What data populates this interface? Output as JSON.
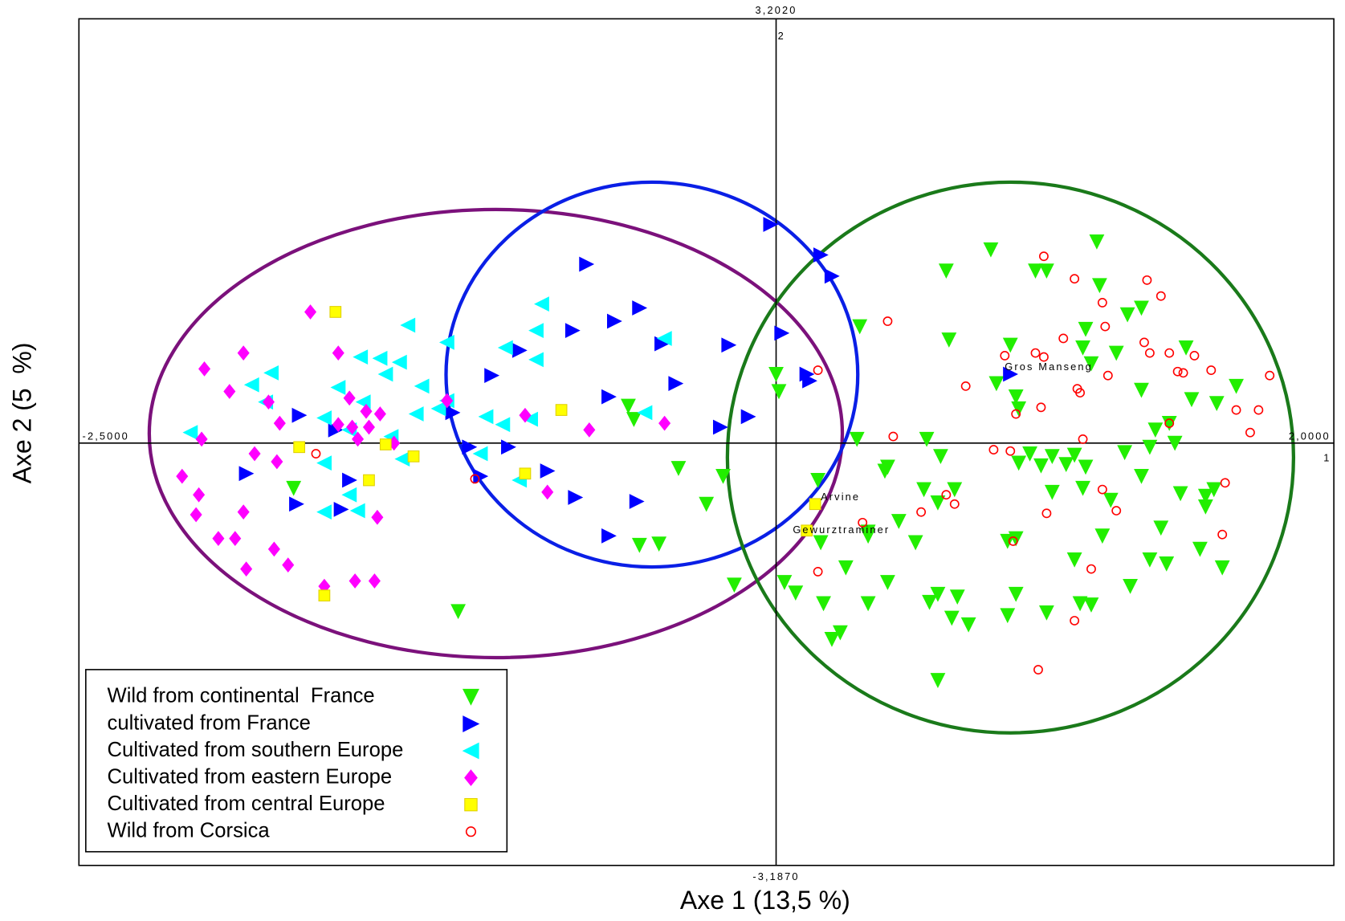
{
  "chart_data": {
    "type": "scatter",
    "x_label": "Axe 1 (13,5 %)",
    "y_label": "Axe 2 (5  %)",
    "x_axis_number": "1",
    "y_axis_number": "2",
    "xlim": [
      -2.5,
      2.0
    ],
    "ylim": [
      -3.187,
      3.202
    ],
    "xticks": [
      {
        "value": -2.5,
        "label": "-2,5000"
      },
      {
        "value": 2.0,
        "label": "2,0000"
      }
    ],
    "yticks": [
      {
        "value": -3.187,
        "label": "-3,1870"
      },
      {
        "value": 3.202,
        "label": "3,2020"
      }
    ],
    "legend": "lower left",
    "series": [
      {
        "name": "Wild from continental  France",
        "color": "#22ee00",
        "marker": "triangle-down",
        "x": [
          1.15,
          0.77,
          0.61,
          0.93,
          0.97,
          1.16,
          1.31,
          1.26,
          0.3,
          1.11,
          0.62,
          0.84,
          1.1,
          1.47,
          1.22,
          1.13,
          0.0,
          0.79,
          0.01,
          0.86,
          1.31,
          1.65,
          -0.53,
          0.87,
          1.49,
          1.58,
          -0.51,
          1.41,
          1.36,
          0.29,
          0.54,
          1.43,
          1.34,
          1.25,
          0.59,
          0.91,
          0.99,
          1.07,
          0.87,
          0.95,
          1.04,
          1.11,
          0.4,
          0.39,
          -0.35,
          -0.19,
          1.31,
          0.15,
          1.1,
          0.64,
          0.53,
          1.57,
          1.54,
          1.45,
          0.99,
          1.2,
          -0.25,
          0.58,
          -1.73,
          1.54,
          0.44,
          1.38,
          0.33,
          0.86,
          0.83,
          0.16,
          1.17,
          -0.49,
          -0.42,
          0.5,
          1.52,
          1.34,
          1.4,
          1.6,
          0.25,
          1.07,
          0.03,
          0.07,
          0.4,
          1.27,
          -0.15,
          0.58,
          0.86,
          0.65,
          0.17,
          0.33,
          0.55,
          -1.14,
          0.83,
          0.97,
          1.09,
          1.13,
          0.63,
          0.69,
          0.23,
          0.2,
          0.58,
          0.33
        ],
        "y": [
          1.52,
          1.46,
          1.3,
          1.3,
          1.3,
          1.19,
          1.02,
          0.97,
          0.88,
          0.86,
          0.78,
          0.74,
          0.72,
          0.72,
          0.68,
          0.6,
          0.52,
          0.45,
          0.39,
          0.35,
          0.4,
          0.43,
          0.28,
          0.26,
          0.33,
          0.3,
          0.18,
          0.15,
          0.1,
          0.03,
          0.03,
          0.0,
          -0.03,
          -0.07,
          -0.1,
          -0.08,
          -0.1,
          -0.09,
          -0.15,
          -0.17,
          -0.16,
          -0.18,
          -0.18,
          -0.21,
          -0.19,
          -0.25,
          -0.25,
          -0.28,
          -0.34,
          -0.35,
          -0.35,
          -0.35,
          -0.4,
          -0.38,
          -0.37,
          -0.43,
          -0.46,
          -0.45,
          -0.34,
          -0.48,
          -0.59,
          -0.64,
          -0.7,
          -0.72,
          -0.74,
          -0.75,
          -0.7,
          -0.77,
          -0.76,
          -0.75,
          -0.8,
          -0.88,
          -0.91,
          -0.94,
          -0.94,
          -0.88,
          -1.05,
          -1.13,
          -1.05,
          -1.08,
          -1.07,
          -1.14,
          -1.14,
          -1.16,
          -1.21,
          -1.21,
          -1.2,
          -1.27,
          -1.3,
          -1.28,
          -1.21,
          -1.22,
          -1.32,
          -1.37,
          -1.43,
          -1.48,
          -1.79,
          -0.67
        ]
      },
      {
        "name": "cultivated from France",
        "color": "#0000ff",
        "marker": "triangle-right",
        "x": [
          -0.02,
          0.16,
          0.2,
          -0.68,
          -0.49,
          -0.58,
          -0.73,
          -0.41,
          -0.17,
          0.02,
          -0.92,
          -1.02,
          -0.36,
          0.11,
          0.12,
          -0.6,
          -0.1,
          -0.2,
          -1.16,
          -1.71,
          -1.58,
          -1.1,
          -0.96,
          -1.06,
          -0.82,
          -1.9,
          -1.53,
          -0.72,
          -0.5,
          -1.72,
          -1.56,
          -0.6,
          0.84
        ],
        "y": [
          1.65,
          1.42,
          1.26,
          1.35,
          1.02,
          0.92,
          0.85,
          0.75,
          0.74,
          0.83,
          0.7,
          0.51,
          0.45,
          0.52,
          0.47,
          0.35,
          0.2,
          0.12,
          0.23,
          0.21,
          0.1,
          -0.03,
          -0.03,
          -0.25,
          -0.21,
          -0.23,
          -0.28,
          -0.41,
          -0.44,
          -0.46,
          -0.5,
          -0.7,
          0.52
        ]
      },
      {
        "name": "Cultivated from southern Europe",
        "color": "#00ffff",
        "marker": "triangle-left",
        "x": [
          -0.84,
          -1.32,
          -0.86,
          -1.18,
          -0.97,
          -0.4,
          -0.86,
          -1.49,
          -1.42,
          -1.35,
          -1.81,
          -1.4,
          -1.57,
          -1.88,
          -1.27,
          -1.18,
          -1.48,
          -0.98,
          -1.83,
          -1.21,
          -1.29,
          -1.04,
          -1.62,
          -0.88,
          -1.53,
          -0.47,
          -2.1,
          -1.38,
          -1.06,
          -1.34,
          -1.62,
          -0.92,
          -1.53,
          -1.5,
          -1.62
        ],
        "y": [
          1.05,
          0.89,
          0.85,
          0.76,
          0.72,
          0.79,
          0.63,
          0.65,
          0.64,
          0.61,
          0.53,
          0.52,
          0.42,
          0.44,
          0.43,
          0.32,
          0.31,
          0.14,
          0.31,
          0.26,
          0.22,
          0.2,
          0.19,
          0.18,
          0.1,
          0.23,
          0.08,
          0.05,
          -0.08,
          -0.12,
          -0.15,
          -0.28,
          -0.39,
          -0.51,
          -0.52
        ]
      },
      {
        "name": "Cultivated from eastern Europe",
        "color": "#ff00ff",
        "marker": "diamond",
        "x": [
          -1.67,
          -1.57,
          -1.91,
          -2.05,
          -1.96,
          -1.53,
          -1.82,
          -1.18,
          -1.47,
          -1.78,
          -1.42,
          -0.9,
          -0.4,
          -0.67,
          -1.46,
          -1.52,
          -1.57,
          -1.5,
          -2.06,
          -1.37,
          -1.87,
          -1.79,
          -2.13,
          -2.07,
          -2.08,
          -1.91,
          -1.43,
          -2.0,
          -1.94,
          -1.8,
          -1.75,
          -1.9,
          -1.51,
          -1.44,
          -1.62,
          -0.82
        ],
        "y": [
          0.99,
          0.68,
          0.68,
          0.56,
          0.39,
          0.34,
          0.31,
          0.32,
          0.24,
          0.15,
          0.22,
          0.21,
          0.15,
          0.1,
          0.12,
          0.12,
          0.14,
          0.03,
          0.03,
          0.0,
          -0.08,
          -0.14,
          -0.25,
          -0.39,
          -0.54,
          -0.52,
          -0.56,
          -0.72,
          -0.72,
          -0.8,
          -0.92,
          -0.95,
          -1.04,
          -1.04,
          -1.08,
          -0.37
        ]
      },
      {
        "name": "Cultivated from central Europe",
        "color": "#ffff00",
        "marker": "square",
        "x": [
          -1.58,
          -0.77,
          -1.71,
          -1.4,
          -1.3,
          -1.46,
          -0.9,
          0.14,
          0.11,
          -1.62
        ],
        "y": [
          0.99,
          0.25,
          -0.03,
          -0.01,
          -0.1,
          -0.28,
          -0.23,
          -0.46,
          -0.66,
          -1.15
        ]
      },
      {
        "name": "Wild from Corsica",
        "color": "#ff0000",
        "marker": "circle",
        "x": [
          0.96,
          1.07,
          1.33,
          1.38,
          1.17,
          0.4,
          1.18,
          1.03,
          1.32,
          0.82,
          0.93,
          0.96,
          1.34,
          1.41,
          1.5,
          1.44,
          1.46,
          1.56,
          1.77,
          1.19,
          0.15,
          0.68,
          1.08,
          1.09,
          0.95,
          1.65,
          1.73,
          0.86,
          1.41,
          1.7,
          0.42,
          1.1,
          0.78,
          0.84,
          1.61,
          0.61,
          0.64,
          1.17,
          0.52,
          0.97,
          1.22,
          0.31,
          1.6,
          0.85,
          0.15,
          1.13,
          1.07,
          0.94,
          -1.65,
          -1.08
        ],
        "y": [
          1.41,
          1.24,
          1.23,
          1.11,
          1.06,
          0.92,
          0.88,
          0.79,
          0.76,
          0.66,
          0.68,
          0.65,
          0.68,
          0.68,
          0.66,
          0.54,
          0.53,
          0.55,
          0.51,
          0.51,
          0.55,
          0.43,
          0.41,
          0.38,
          0.27,
          0.25,
          0.25,
          0.22,
          0.15,
          0.08,
          0.05,
          0.03,
          -0.05,
          -0.06,
          -0.3,
          -0.39,
          -0.46,
          -0.35,
          -0.52,
          -0.53,
          -0.51,
          -0.6,
          -0.69,
          -0.74,
          -0.97,
          -0.95,
          -1.34,
          -1.71,
          -0.08,
          -0.27
        ]
      }
    ],
    "annotations": [
      {
        "text": "Gros Manseng",
        "x": 0.82,
        "y": 0.57
      },
      {
        "text": "Arvine",
        "x": 0.16,
        "y": -0.41
      },
      {
        "text": "Gewurztraminer",
        "x": 0.06,
        "y": -0.66
      }
    ]
  }
}
